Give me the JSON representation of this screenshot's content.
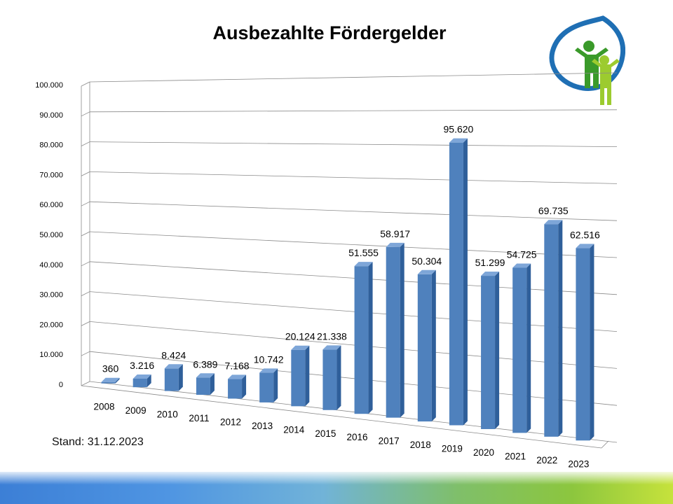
{
  "slide": {
    "title": "Ausbezahlte Fördergelder",
    "stand_note": "Stand: 31.12.2023"
  },
  "colors": {
    "bar_front": "#4f81bd",
    "bar_side": "#2f5f9a",
    "bar_top": "#7ea6d8",
    "grid": "#8a8a8a",
    "logo_blue": "#1f6fb4",
    "logo_green_dark": "#3a9a2a",
    "logo_green_light": "#9ccb2f"
  },
  "icons": {
    "logo": "leaf-family-logo-icon"
  },
  "chart_data": {
    "type": "bar",
    "title": "Ausbezahlte Fördergelder",
    "categories": [
      "2008",
      "2009",
      "2010",
      "2011",
      "2012",
      "2013",
      "2014",
      "2015",
      "2016",
      "2017",
      "2018",
      "2019",
      "2020",
      "2021",
      "2022",
      "2023"
    ],
    "values": [
      360,
      3216,
      8424,
      6389,
      7168,
      10742,
      20124,
      21338,
      51555,
      58917,
      50304,
      95620,
      51299,
      54725,
      69735,
      62516
    ],
    "value_labels": [
      "360",
      "3.216",
      "8.424",
      "6.389",
      "7.168",
      "10.742",
      "20.124",
      "21.338",
      "51.555",
      "58.917",
      "50.304",
      "95.620",
      "51.299",
      "54.725",
      "69.735",
      "62.516"
    ],
    "y_ticks": [
      "0",
      "10.000",
      "20.000",
      "30.000",
      "40.000",
      "50.000",
      "60.000",
      "70.000",
      "80.000",
      "90.000",
      "100.000"
    ],
    "y_tick_values": [
      0,
      10000,
      20000,
      30000,
      40000,
      50000,
      60000,
      70000,
      80000,
      90000,
      100000
    ],
    "ylim": [
      0,
      100000
    ],
    "xlabel": "",
    "ylabel": "",
    "grid": true,
    "legend": "none",
    "style": "3d-column"
  }
}
